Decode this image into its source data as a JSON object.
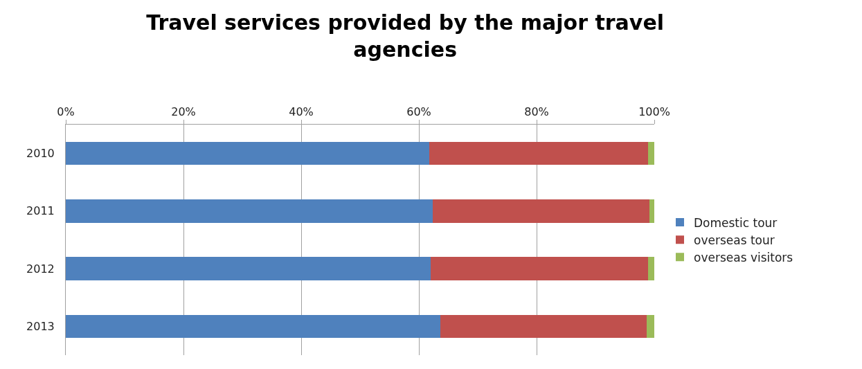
{
  "chart_data": {
    "type": "bar",
    "orientation": "horizontal",
    "stacked": true,
    "title": "Travel services provided by the major travel agencies",
    "categories": [
      "2010",
      "2011",
      "2012",
      "2013"
    ],
    "series": [
      {
        "name": "Domestic tour",
        "color": "#4f81bd",
        "values": [
          61.8,
          62.3,
          62.0,
          63.6
        ]
      },
      {
        "name": "overseas tour",
        "color": "#c0504d",
        "values": [
          37.1,
          36.9,
          36.9,
          35.1
        ]
      },
      {
        "name": "overseas visitors",
        "color": "#9bbb59",
        "values": [
          1.1,
          0.8,
          1.1,
          1.3
        ]
      }
    ],
    "xlim": [
      0,
      100
    ],
    "xticks": [
      {
        "value": 0,
        "label": "0%"
      },
      {
        "value": 20,
        "label": "20%"
      },
      {
        "value": 40,
        "label": "40%"
      },
      {
        "value": 60,
        "label": "60%"
      },
      {
        "value": 80,
        "label": "80%"
      },
      {
        "value": 100,
        "label": "100%"
      }
    ],
    "grid": "x",
    "legend": "right"
  }
}
